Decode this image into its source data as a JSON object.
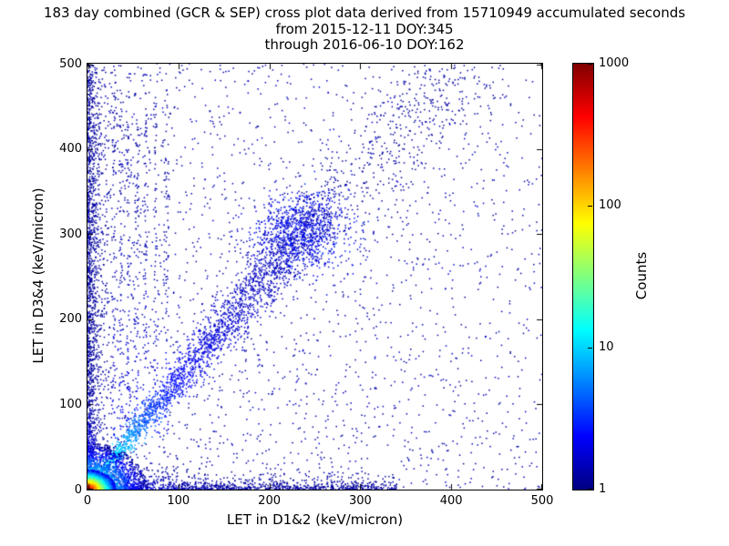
{
  "chart_data": {
    "type": "scatter",
    "title": "183 day combined (GCR & SEP) cross plot data derived from 15710949 accumulated seconds",
    "subtitle_from": "from 2015-12-11 DOY:345",
    "subtitle_through": "through 2016-06-10 DOY:162",
    "xlabel": "LET in D1&2 (keV/micron)",
    "ylabel": "LET in D3&4 (keV/micron)",
    "xlim": [
      0,
      500
    ],
    "ylim": [
      0,
      500
    ],
    "x_ticks": [
      0,
      100,
      200,
      300,
      400,
      500
    ],
    "y_ticks": [
      0,
      100,
      200,
      300,
      400,
      500
    ],
    "grid": false,
    "colorbar": {
      "label": "Counts",
      "scale": "log",
      "min": 1,
      "max": 1000,
      "ticks": [
        1,
        10,
        100,
        1000
      ],
      "colormap": "jet",
      "colormap_stops": [
        "#000080",
        "#0000ff",
        "#00ffff",
        "#ffff00",
        "#ff0000",
        "#800000"
      ]
    },
    "features": [
      {
        "name": "origin-core",
        "description": "very dense hotspot at LET < ~25 keV/micron in both detectors, counts up to ~1000 (red/yellow/green)"
      },
      {
        "name": "main-coincidence-band",
        "description": "dense diagonal band from origin to about (260, 335), slope ~1.3, cyan near origin fading to blue, denser clump near (235, 305)"
      },
      {
        "name": "upper-diagonal-extension",
        "description": "fainter diagonal continuation toward (430, 500)"
      },
      {
        "name": "d12-axis-band",
        "description": "points hugging the x-axis out to ~340 keV/micron"
      },
      {
        "name": "d34-axis-band",
        "description": "points hugging the y-axis up to ~500 keV/micron"
      },
      {
        "name": "vertical-striations",
        "description": "sparse vertical stripes of points near x = 30-90"
      },
      {
        "name": "background",
        "description": "sparse single-count dark-blue scatter over full plane, denser at low LET"
      }
    ],
    "synthesis": {
      "seed": 1337,
      "point_size": 1.5,
      "components": [
        {
          "type": "background",
          "n": 2400,
          "xPow": 1.35,
          "yPow": 1.12,
          "t": 0.02,
          "tVar": 0.06
        },
        {
          "type": "column",
          "n": 1500,
          "xMean": 6,
          "yPow": 1.2,
          "tBase": 0.03,
          "tBoost": 0.5,
          "yDecay": 30,
          "xDecay": 12
        },
        {
          "type": "row",
          "n": 1200,
          "yMean": 5,
          "xPow": 1.5,
          "xMax": 340,
          "tBase": 0.03,
          "tBoost": 0.5,
          "xDecay": 35,
          "yDecay": 9
        },
        {
          "type": "stripes",
          "xs": [
            29,
            37,
            45,
            54,
            64,
            75,
            87
          ],
          "nPer": 80,
          "jitter": 1.4,
          "yMin": 60,
          "yMax": 470,
          "tBase": 0.03,
          "tBoost": 0.12,
          "decay": 130
        },
        {
          "type": "diagonal",
          "n": 2400,
          "len": 262,
          "slope": 1.28,
          "sPow": 0.85,
          "sigma0": 2.5,
          "sigmaGrow": 15,
          "tBase": 0.05,
          "tBoost": 0.55,
          "tDecay": 0.2
        },
        {
          "type": "blob",
          "n": 650,
          "cx": 236,
          "cy": 303,
          "sx": 27,
          "sy": 23,
          "tBase": 0.06,
          "tVar": 0.12
        },
        {
          "type": "band",
          "n": 420,
          "x0": 265,
          "y0": 340,
          "dx": 165,
          "dy": 158,
          "sigma": 27,
          "tBase": 0.03
        },
        {
          "type": "core",
          "n": 1700,
          "r": 55,
          "rPow": 1.5,
          "stretchX": 1.2,
          "tCenter": 0.5,
          "tFall": 0.48
        },
        {
          "type": "core",
          "n": 3400,
          "r": 23,
          "rPow": 2.2,
          "stretchX": 1.35,
          "tCenter": 0.98,
          "tFall": 0.88
        }
      ]
    }
  }
}
